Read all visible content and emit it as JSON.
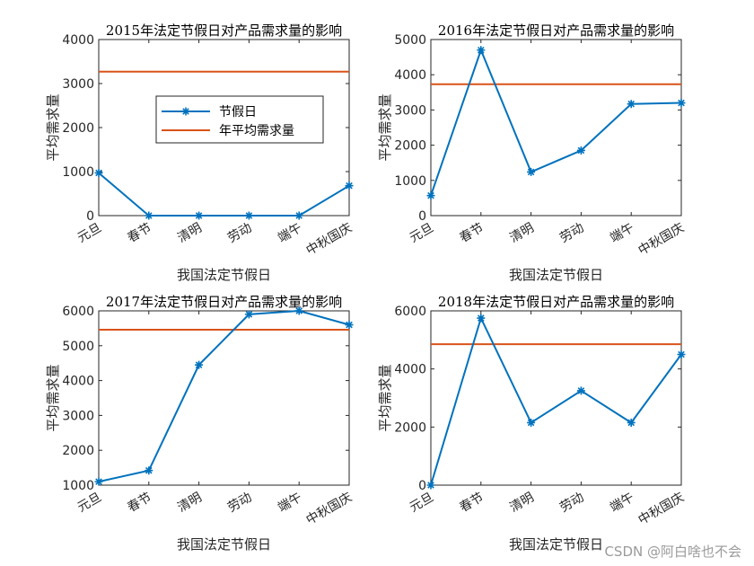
{
  "watermark": "CSDN @阿白啥也不会",
  "colors": {
    "series": "#0072bd",
    "mean": "#d95319",
    "axis": "#262626",
    "background": "#ffffff"
  },
  "chart_data": [
    {
      "type": "line",
      "title": "2015年法定节假日对产品需求量的影响",
      "xlabel": "我国法定节假日",
      "ylabel": "平均需求量",
      "categories": [
        "元旦",
        "春节",
        "清明",
        "劳动",
        "端午",
        "中秋国庆"
      ],
      "ylim": [
        0,
        4000
      ],
      "yticks": [
        0,
        1000,
        2000,
        3000,
        4000
      ],
      "series": [
        {
          "name": "节假日",
          "marker": "asterisk",
          "values": [
            970,
            0,
            0,
            0,
            0,
            680
          ]
        },
        {
          "name": "年平均需求量",
          "marker": "none",
          "values": [
            3270,
            3270,
            3270,
            3270,
            3270,
            3270
          ]
        }
      ],
      "legend": "center"
    },
    {
      "type": "line",
      "title": "2016年法定节假日对产品需求量的影响",
      "xlabel": "我国法定节假日",
      "ylabel": "平均需求量",
      "categories": [
        "元旦",
        "春节",
        "清明",
        "劳动",
        "端午",
        "中秋国庆"
      ],
      "ylim": [
        0,
        5000
      ],
      "yticks": [
        0,
        1000,
        2000,
        3000,
        4000,
        5000
      ],
      "series": [
        {
          "marker": "asterisk",
          "values": [
            570,
            4700,
            1240,
            1850,
            3170,
            3200
          ]
        },
        {
          "marker": "none",
          "values": [
            3730,
            3730,
            3730,
            3730,
            3730,
            3730
          ]
        }
      ]
    },
    {
      "type": "line",
      "title": "2017年法定节假日对产品需求量的影响",
      "xlabel": "我国法定节假日",
      "ylabel": "平均需求量",
      "categories": [
        "元旦",
        "春节",
        "清明",
        "劳动",
        "端午",
        "中秋国庆"
      ],
      "ylim": [
        1000,
        6000
      ],
      "yticks": [
        1000,
        2000,
        3000,
        4000,
        5000,
        6000
      ],
      "series": [
        {
          "marker": "asterisk",
          "values": [
            1100,
            1420,
            4450,
            5900,
            6000,
            5600
          ]
        },
        {
          "marker": "none",
          "values": [
            5460,
            5460,
            5460,
            5460,
            5460,
            5460
          ]
        }
      ]
    },
    {
      "type": "line",
      "title": "2018年法定节假日对产品需求量的影响",
      "xlabel": "我国法定节假日",
      "ylabel": "平均需求量",
      "categories": [
        "元旦",
        "春节",
        "清明",
        "劳动",
        "端午",
        "中秋国庆"
      ],
      "ylim": [
        0,
        6000
      ],
      "yticks": [
        0,
        2000,
        4000,
        6000
      ],
      "series": [
        {
          "marker": "asterisk",
          "values": [
            0,
            5750,
            2150,
            3250,
            2150,
            4500
          ]
        },
        {
          "marker": "none",
          "values": [
            4850,
            4850,
            4850,
            4850,
            4850,
            4850
          ]
        }
      ]
    }
  ]
}
